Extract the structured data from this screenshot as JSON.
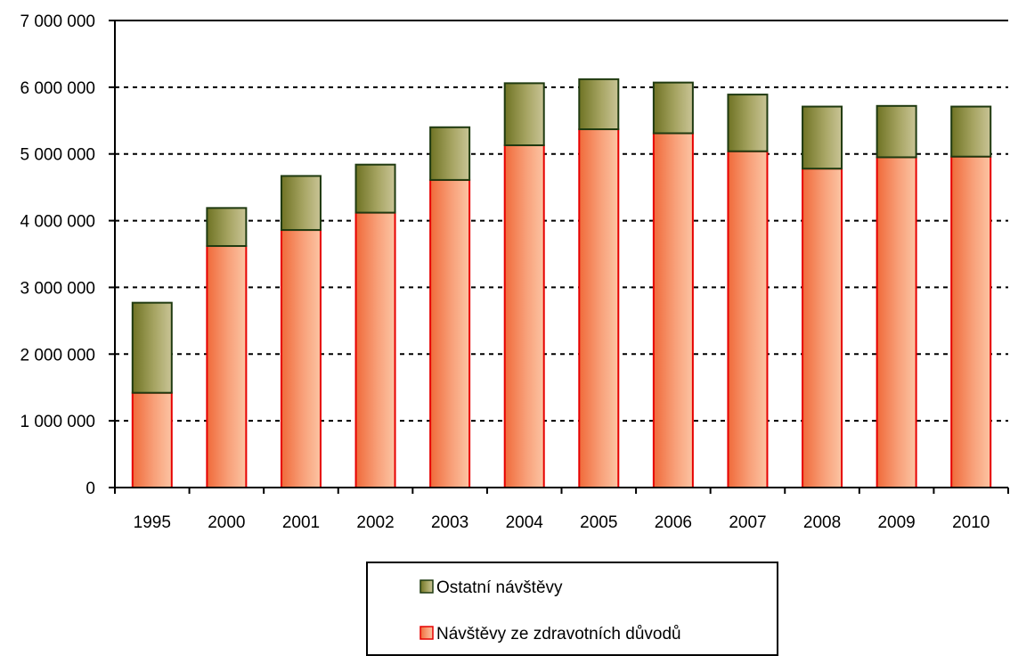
{
  "chart_data": {
    "type": "bar",
    "stacked": true,
    "categories": [
      "1995",
      "2000",
      "2001",
      "2002",
      "2003",
      "2004",
      "2005",
      "2006",
      "2007",
      "2008",
      "2009",
      "2010"
    ],
    "series": [
      {
        "name": "Návštěvy ze zdravotních důvodů",
        "color": "#f2804f",
        "values": [
          1420000,
          3620000,
          3860000,
          4120000,
          4610000,
          5130000,
          5370000,
          5310000,
          5040000,
          4780000,
          4950000,
          4960000
        ]
      },
      {
        "name": "Ostatní návštěvy",
        "color": "#8c8c3c",
        "values": [
          1350000,
          570000,
          810000,
          720000,
          790000,
          930000,
          750000,
          760000,
          850000,
          930000,
          770000,
          750000
        ]
      }
    ],
    "ylim": [
      0,
      7000000
    ],
    "yticks": [
      0,
      1000000,
      2000000,
      3000000,
      4000000,
      5000000,
      6000000,
      7000000
    ],
    "ytick_labels": [
      "0",
      "1 000 000",
      "2 000 000",
      "3 000 000",
      "4 000 000",
      "5 000 000",
      "6 000 000",
      "7 000 000"
    ],
    "grid": "horizontal dotted",
    "legend": {
      "position": "bottom-center",
      "entries": [
        "Ostatní návštěvy",
        "Návštěvy ze zdravotních důvodů"
      ]
    }
  }
}
